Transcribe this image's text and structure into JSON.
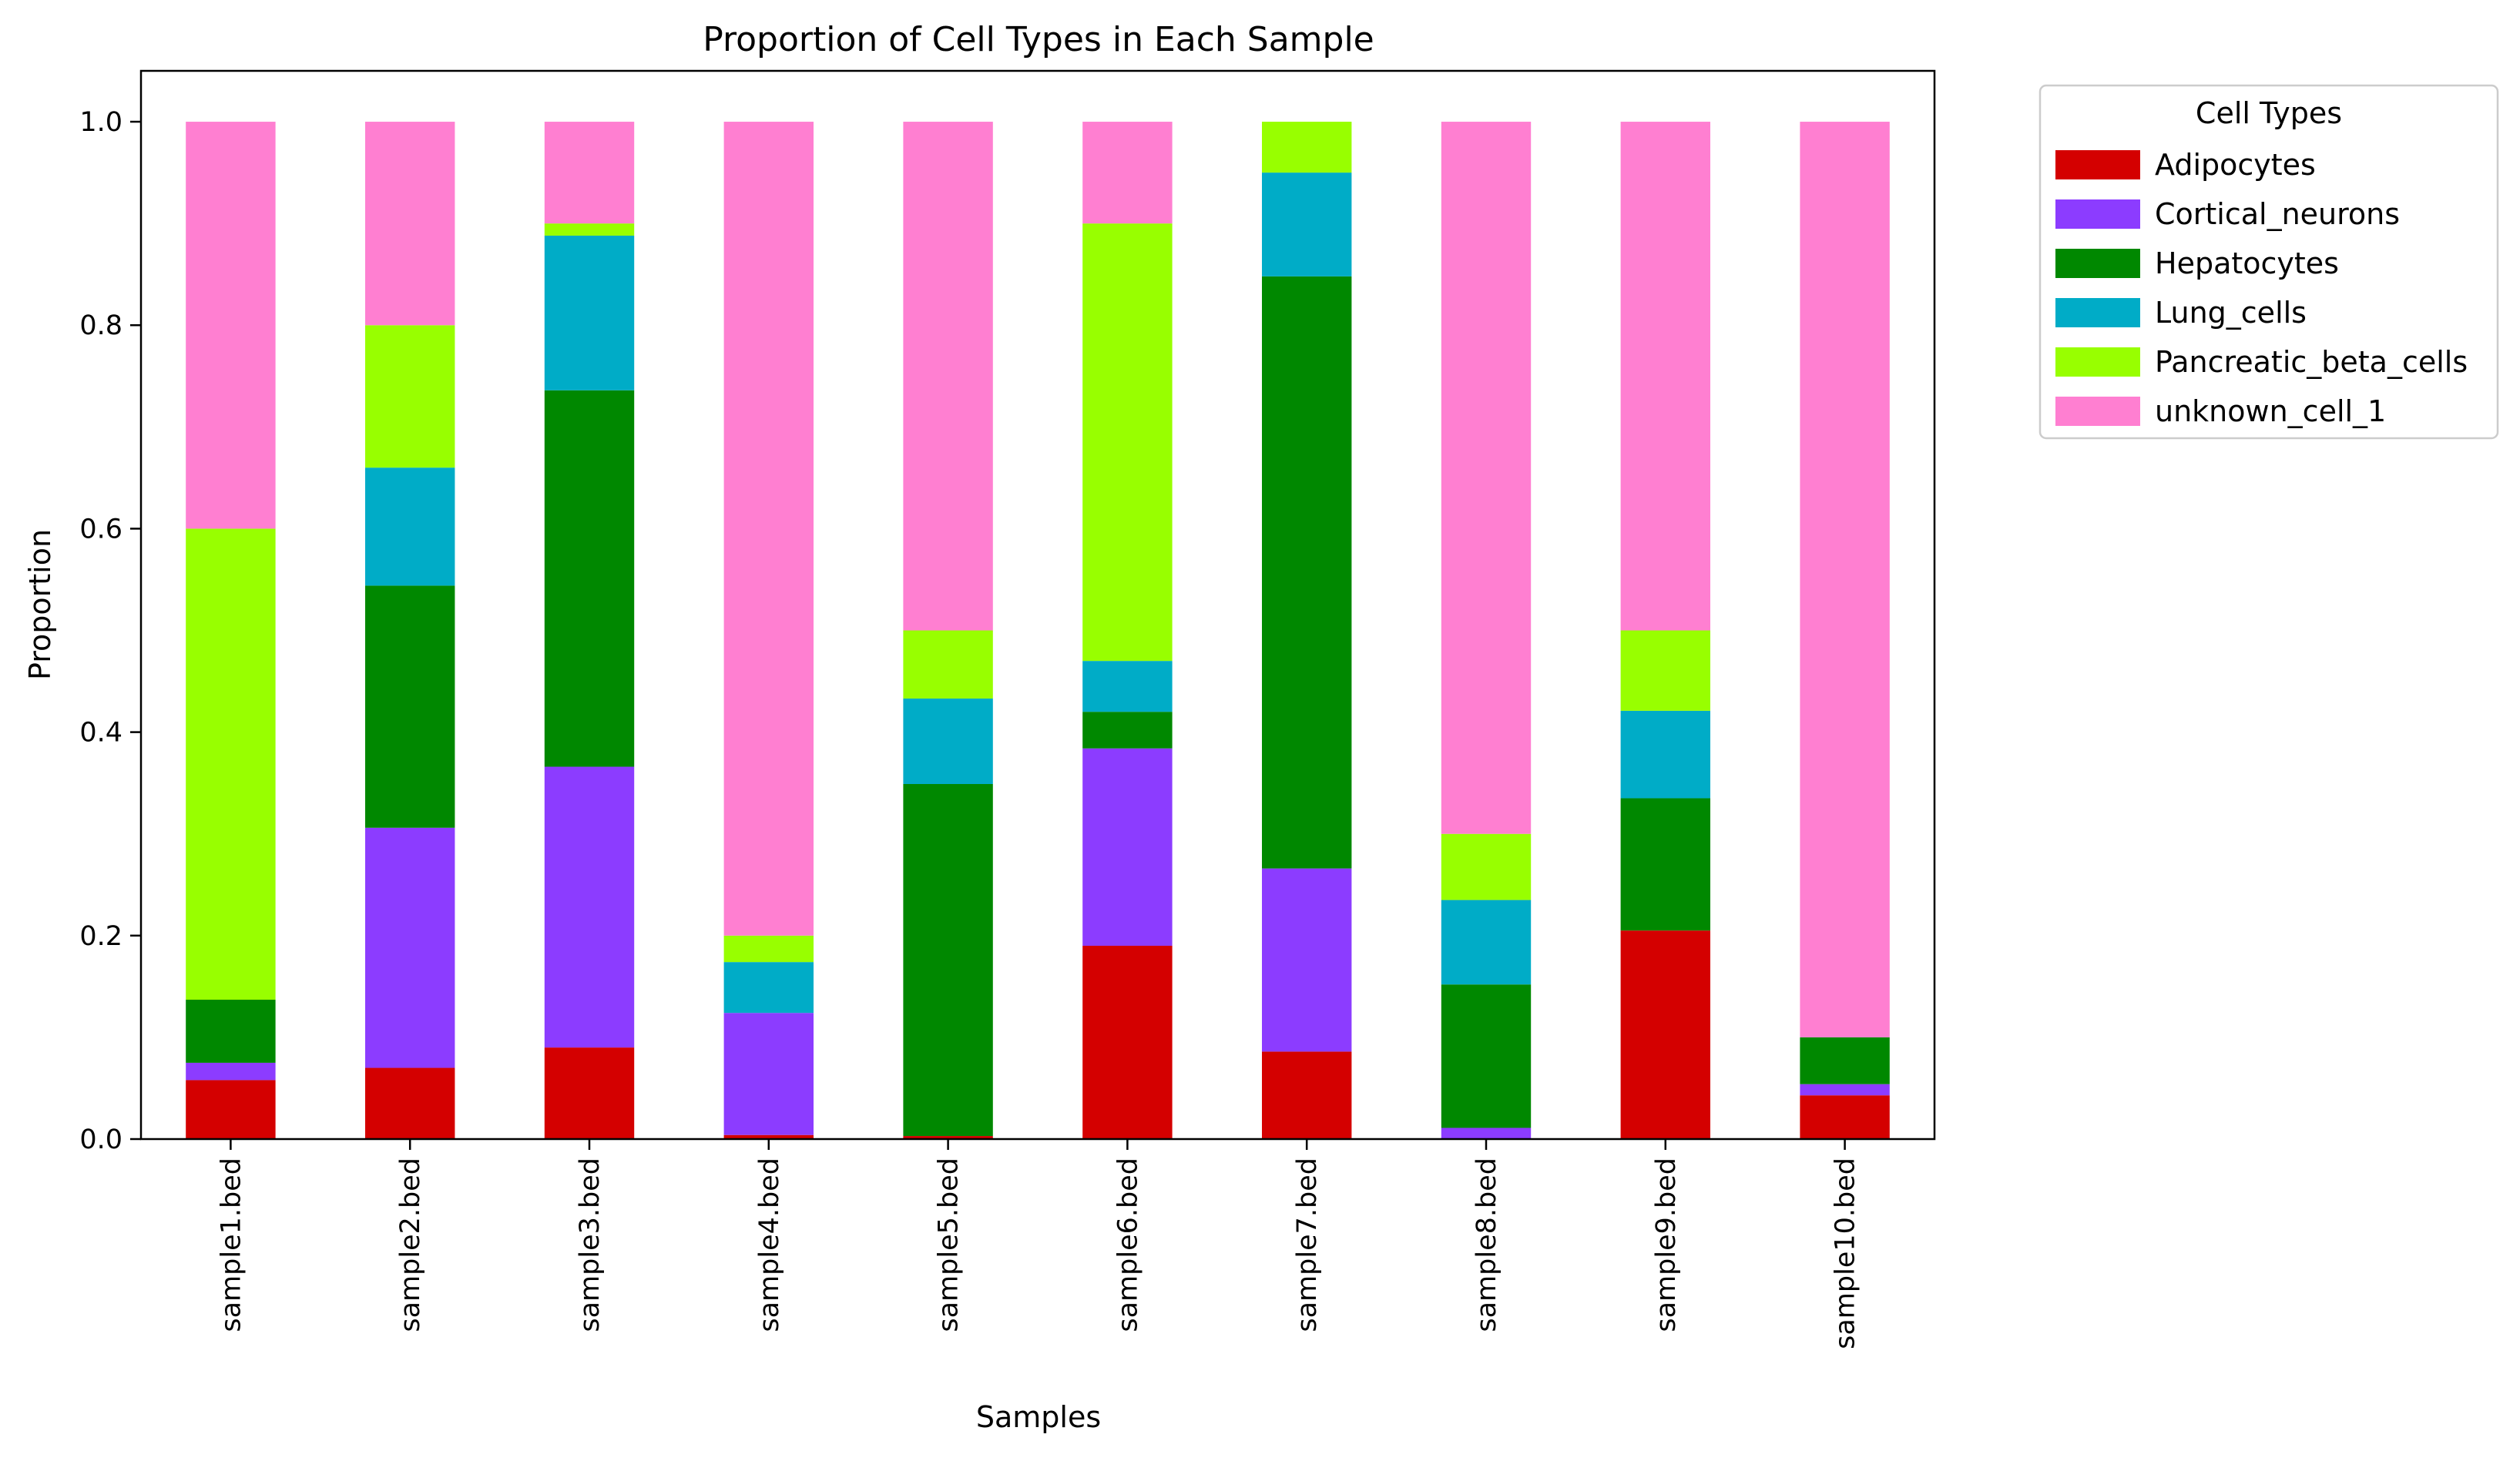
{
  "chart_data": {
    "type": "bar",
    "stacked": true,
    "title": "Proportion of Cell Types in Each Sample",
    "xlabel": "Samples",
    "ylabel": "Proportion",
    "ylim": [
      0,
      1.05
    ],
    "yticks": [
      "0.0",
      "0.2",
      "0.4",
      "0.6",
      "0.8",
      "1.0"
    ],
    "grid": false,
    "legend_title": "Cell Types",
    "legend_position": "outside-upper-right",
    "categories": [
      "sample1.bed",
      "sample2.bed",
      "sample3.bed",
      "sample4.bed",
      "sample5.bed",
      "sample6.bed",
      "sample7.bed",
      "sample8.bed",
      "sample9.bed",
      "sample10.bed"
    ],
    "series": [
      {
        "name": "Adipocytes",
        "color": "#d40000",
        "values": [
          0.058,
          0.07,
          0.09,
          0.004,
          0.003,
          0.19,
          0.086,
          0.0,
          0.205,
          0.043
        ]
      },
      {
        "name": "Cortical_neurons",
        "color": "#8c3cff",
        "values": [
          0.017,
          0.236,
          0.276,
          0.12,
          0.0,
          0.194,
          0.18,
          0.011,
          0.0,
          0.011
        ]
      },
      {
        "name": "Hepatocytes",
        "color": "#008800",
        "values": [
          0.062,
          0.238,
          0.37,
          0.0,
          0.346,
          0.036,
          0.582,
          0.141,
          0.13,
          0.046
        ]
      },
      {
        "name": "Lung_cells",
        "color": "#00acc7",
        "values": [
          0.0,
          0.116,
          0.152,
          0.05,
          0.084,
          0.05,
          0.102,
          0.083,
          0.086,
          0.0
        ]
      },
      {
        "name": "Pancreatic_beta_cells",
        "color": "#98ff00",
        "values": [
          0.463,
          0.14,
          0.012,
          0.026,
          0.067,
          0.43,
          0.05,
          0.065,
          0.079,
          0.0
        ]
      },
      {
        "name": "unknown_cell_1",
        "color": "#ff7fd1",
        "values": [
          0.4,
          0.2,
          0.1,
          0.8,
          0.5,
          0.1,
          0.0,
          0.7,
          0.5,
          0.9
        ]
      }
    ]
  }
}
